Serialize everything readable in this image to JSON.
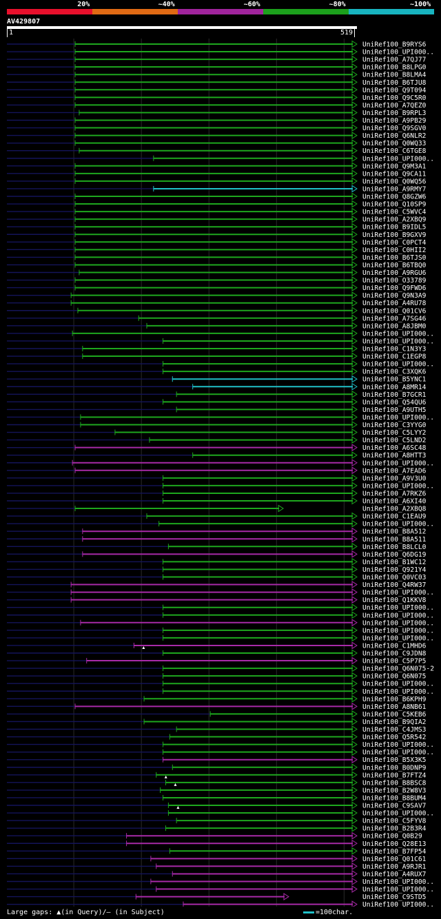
{
  "query": {
    "id": "AV429807",
    "start": "1",
    "end": "519",
    "length": 519
  },
  "legend": {
    "items": [
      {
        "label": "20%",
        "color": "#e8102c"
      },
      {
        "label": "~40%",
        "color": "#e06a14"
      },
      {
        "label": "~60%",
        "color": "#a0249c"
      },
      {
        "label": "~80%",
        "color": "#1ca01c"
      },
      {
        "label": "~100%",
        "color": "#18b4c0"
      }
    ]
  },
  "footer": {
    "gaps_text": "Large gaps: ▲(in Query)/– (in Subject)",
    "scale_text": "=100char."
  },
  "chart_data": {
    "type": "alignment",
    "title": "AV429807",
    "x_range": [
      1,
      519
    ],
    "gridlines": [
      100,
      200,
      300,
      400,
      500
    ],
    "hits": [
      {
        "label": "UniRef100_B9RYS6",
        "start": 102,
        "end": 519,
        "color": "green",
        "arrow": true
      },
      {
        "label": "UniRef100_UPI000..",
        "start": 102,
        "end": 519,
        "color": "green",
        "arrow": true
      },
      {
        "label": "UniRef100_A7QJ77",
        "start": 102,
        "end": 519,
        "color": "green",
        "arrow": true
      },
      {
        "label": "UniRef100_B8LPG0",
        "start": 102,
        "end": 519,
        "color": "green",
        "arrow": true
      },
      {
        "label": "UniRef100_B8LMA4",
        "start": 102,
        "end": 519,
        "color": "green",
        "arrow": true
      },
      {
        "label": "UniRef100_B6TJU8",
        "start": 102,
        "end": 519,
        "color": "green",
        "arrow": true
      },
      {
        "label": "UniRef100_Q9T094",
        "start": 102,
        "end": 519,
        "color": "green",
        "arrow": true
      },
      {
        "label": "UniRef100_Q9C5R0",
        "start": 102,
        "end": 519,
        "color": "green",
        "arrow": true
      },
      {
        "label": "UniRef100_A7QEZ0",
        "start": 102,
        "end": 519,
        "color": "green",
        "arrow": true
      },
      {
        "label": "UniRef100_B9RPL3",
        "start": 108,
        "end": 519,
        "color": "green",
        "arrow": true
      },
      {
        "label": "UniRef100_A9PB29",
        "start": 102,
        "end": 519,
        "color": "green",
        "arrow": true
      },
      {
        "label": "UniRef100_Q9SGV0",
        "start": 102,
        "end": 519,
        "color": "green",
        "arrow": true
      },
      {
        "label": "UniRef100_Q6NLR2",
        "start": 102,
        "end": 519,
        "color": "green",
        "arrow": true
      },
      {
        "label": "UniRef100_Q0WQ33",
        "start": 102,
        "end": 519,
        "color": "green",
        "arrow": true
      },
      {
        "label": "UniRef100_C6TGE8",
        "start": 108,
        "end": 519,
        "color": "green",
        "arrow": true
      },
      {
        "label": "UniRef100_UPI000..",
        "start": 218,
        "end": 519,
        "color": "green",
        "arrow": true
      },
      {
        "label": "UniRef100_Q9M3A1",
        "start": 102,
        "end": 519,
        "color": "green",
        "arrow": true
      },
      {
        "label": "UniRef100_Q9CA11",
        "start": 102,
        "end": 519,
        "color": "green",
        "arrow": true
      },
      {
        "label": "UniRef100_Q0WQ56",
        "start": 102,
        "end": 519,
        "color": "green",
        "arrow": true
      },
      {
        "label": "UniRef100_A9RMY7",
        "start": 218,
        "end": 519,
        "color": "cyan",
        "arrow": true
      },
      {
        "label": "UniRef100_Q8GZW6",
        "start": 102,
        "end": 519,
        "color": "green",
        "arrow": true
      },
      {
        "label": "UniRef100_Q10SP9",
        "start": 102,
        "end": 519,
        "color": "green",
        "arrow": true
      },
      {
        "label": "UniRef100_C5WVC4",
        "start": 102,
        "end": 519,
        "color": "green",
        "arrow": true
      },
      {
        "label": "UniRef100_A2XBQ9",
        "start": 102,
        "end": 519,
        "color": "green",
        "arrow": true
      },
      {
        "label": "UniRef100_B9IDL5",
        "start": 102,
        "end": 519,
        "color": "green",
        "arrow": true
      },
      {
        "label": "UniRef100_B9GXV9",
        "start": 102,
        "end": 519,
        "color": "green",
        "arrow": true
      },
      {
        "label": "UniRef100_C0PCT4",
        "start": 102,
        "end": 519,
        "color": "green",
        "arrow": true
      },
      {
        "label": "UniRef100_C0HII2",
        "start": 102,
        "end": 519,
        "color": "green",
        "arrow": true
      },
      {
        "label": "UniRef100_B6TJS0",
        "start": 102,
        "end": 519,
        "color": "green",
        "arrow": true
      },
      {
        "label": "UniRef100_B6TBQ0",
        "start": 102,
        "end": 519,
        "color": "green",
        "arrow": true
      },
      {
        "label": "UniRef100_A9RGU6",
        "start": 108,
        "end": 519,
        "color": "green",
        "arrow": true
      },
      {
        "label": "UniRef100_O33789",
        "start": 102,
        "end": 519,
        "color": "green",
        "arrow": true
      },
      {
        "label": "UniRef100_Q9FWD6",
        "start": 102,
        "end": 519,
        "color": "green",
        "arrow": true
      },
      {
        "label": "UniRef100_Q9N3A9",
        "start": 96,
        "end": 519,
        "color": "green",
        "arrow": true
      },
      {
        "label": "UniRef100_A4RU78",
        "start": 96,
        "end": 519,
        "color": "green",
        "arrow": true
      },
      {
        "label": "UniRef100_Q01CV6",
        "start": 106,
        "end": 519,
        "color": "green",
        "arrow": true
      },
      {
        "label": "UniRef100_A7SG46",
        "start": 196,
        "end": 519,
        "color": "green",
        "arrow": true
      },
      {
        "label": "UniRef100_A8JBM0",
        "start": 208,
        "end": 519,
        "color": "green",
        "arrow": true
      },
      {
        "label": "UniRef100_UPI000..",
        "start": 98,
        "end": 519,
        "color": "green",
        "arrow": true
      },
      {
        "label": "UniRef100_UPI000..",
        "start": 232,
        "end": 519,
        "color": "green",
        "arrow": true
      },
      {
        "label": "UniRef100_C1N3Y3",
        "start": 113,
        "end": 519,
        "color": "green",
        "arrow": true
      },
      {
        "label": "UniRef100_C1EGP8",
        "start": 113,
        "end": 519,
        "color": "green",
        "arrow": true
      },
      {
        "label": "UniRef100_UPI000..",
        "start": 232,
        "end": 519,
        "color": "green",
        "arrow": true
      },
      {
        "label": "UniRef100_C3XQK6",
        "start": 232,
        "end": 519,
        "color": "green",
        "arrow": true
      },
      {
        "label": "UniRef100_B5YNC1",
        "start": 246,
        "end": 519,
        "color": "cyan",
        "arrow": true
      },
      {
        "label": "UniRef100_A8MR14",
        "start": 276,
        "end": 519,
        "color": "cyan",
        "arrow": true
      },
      {
        "label": "UniRef100_B7GCR1",
        "start": 252,
        "end": 519,
        "color": "green",
        "arrow": true
      },
      {
        "label": "UniRef100_Q54QU6",
        "start": 232,
        "end": 519,
        "color": "green",
        "arrow": true
      },
      {
        "label": "UniRef100_A9UTH5",
        "start": 252,
        "end": 519,
        "color": "green",
        "arrow": true
      },
      {
        "label": "UniRef100_UPI000..",
        "start": 110,
        "end": 519,
        "color": "green",
        "arrow": true
      },
      {
        "label": "UniRef100_C3YYG0",
        "start": 110,
        "end": 519,
        "color": "green",
        "arrow": true
      },
      {
        "label": "UniRef100_C5LYY2",
        "start": 161,
        "end": 519,
        "color": "green",
        "arrow": true
      },
      {
        "label": "UniRef100_C5LND2",
        "start": 212,
        "end": 519,
        "color": "green",
        "arrow": true
      },
      {
        "label": "UniRef100_A6SC48",
        "start": 102,
        "end": 519,
        "color": "magenta",
        "arrow": true
      },
      {
        "label": "UniRef100_A8HTT3",
        "start": 276,
        "end": 519,
        "color": "green",
        "arrow": true
      },
      {
        "label": "UniRef100_UPI000..",
        "start": 98,
        "end": 519,
        "color": "magenta",
        "arrow": true
      },
      {
        "label": "UniRef100_A7EAD6",
        "start": 102,
        "end": 519,
        "color": "magenta",
        "arrow": true
      },
      {
        "label": "UniRef100_A9V3U0",
        "start": 232,
        "end": 519,
        "color": "green",
        "arrow": true
      },
      {
        "label": "UniRef100_UPI000..",
        "start": 232,
        "end": 519,
        "color": "green",
        "arrow": true
      },
      {
        "label": "UniRef100_A7RKZ6",
        "start": 232,
        "end": 519,
        "color": "green",
        "arrow": true
      },
      {
        "label": "UniRef100_A6XI40",
        "start": 232,
        "end": 519,
        "color": "green",
        "arrow": true
      },
      {
        "label": "UniRef100_A2XBQ8",
        "start": 102,
        "end": 410,
        "color": "green",
        "arrow": true
      },
      {
        "label": "UniRef100_C1EAU9",
        "start": 208,
        "end": 519,
        "color": "green",
        "arrow": true
      },
      {
        "label": "UniRef100_UPI000..",
        "start": 226,
        "end": 519,
        "color": "green",
        "arrow": true
      },
      {
        "label": "UniRef100_B8A512",
        "start": 113,
        "end": 519,
        "color": "magenta",
        "arrow": true
      },
      {
        "label": "UniRef100_B8A511",
        "start": 113,
        "end": 519,
        "color": "magenta",
        "arrow": true
      },
      {
        "label": "UniRef100_B8LCL0",
        "start": 240,
        "end": 519,
        "color": "green",
        "arrow": true
      },
      {
        "label": "UniRef100_Q6DG19",
        "start": 113,
        "end": 519,
        "color": "magenta",
        "arrow": true
      },
      {
        "label": "UniRef100_B1WC12",
        "start": 232,
        "end": 519,
        "color": "green",
        "arrow": true
      },
      {
        "label": "UniRef100_Q921Y4",
        "start": 232,
        "end": 519,
        "color": "green",
        "arrow": true
      },
      {
        "label": "UniRef100_Q0VC03",
        "start": 232,
        "end": 519,
        "color": "green",
        "arrow": true
      },
      {
        "label": "UniRef100_Q4RW37",
        "start": 96,
        "end": 519,
        "color": "magenta",
        "arrow": true
      },
      {
        "label": "UniRef100_UPI000..",
        "start": 96,
        "end": 519,
        "color": "magenta",
        "arrow": true
      },
      {
        "label": "UniRef100_Q1KKV8",
        "start": 96,
        "end": 519,
        "color": "magenta",
        "arrow": true
      },
      {
        "label": "UniRef100_UPI000..",
        "start": 232,
        "end": 519,
        "color": "green",
        "arrow": true
      },
      {
        "label": "UniRef100_UPI000..",
        "start": 232,
        "end": 519,
        "color": "green",
        "arrow": true
      },
      {
        "label": "UniRef100_UPI000..",
        "start": 110,
        "end": 519,
        "color": "magenta",
        "arrow": true
      },
      {
        "label": "UniRef100_UPI000..",
        "start": 232,
        "end": 519,
        "color": "green",
        "arrow": true
      },
      {
        "label": "UniRef100_UPI000..",
        "start": 232,
        "end": 519,
        "color": "green",
        "arrow": true
      },
      {
        "label": "UniRef100_C1MHD6",
        "start": 189,
        "end": 519,
        "color": "magenta",
        "arrow": true,
        "gap_mark": true
      },
      {
        "label": "UniRef100_C9JDN8",
        "start": 232,
        "end": 519,
        "color": "green",
        "arrow": true
      },
      {
        "label": "UniRef100_C5P7P5",
        "start": 119,
        "end": 519,
        "color": "magenta",
        "arrow": true
      },
      {
        "label": "UniRef100_Q6N075-2",
        "start": 232,
        "end": 519,
        "color": "green",
        "arrow": true
      },
      {
        "label": "UniRef100_Q6N075",
        "start": 232,
        "end": 519,
        "color": "green",
        "arrow": true
      },
      {
        "label": "UniRef100_UPI000..",
        "start": 232,
        "end": 519,
        "color": "green",
        "arrow": true
      },
      {
        "label": "UniRef100_UPI000..",
        "start": 232,
        "end": 519,
        "color": "green",
        "arrow": true
      },
      {
        "label": "UniRef100_B6KPH9",
        "start": 204,
        "end": 519,
        "color": "green",
        "arrow": true
      },
      {
        "label": "UniRef100_A8NB61",
        "start": 102,
        "end": 519,
        "color": "magenta",
        "arrow": true
      },
      {
        "label": "UniRef100_C5KEB6",
        "start": 302,
        "end": 519,
        "color": "green",
        "arrow": true
      },
      {
        "label": "UniRef100_B9QIA2",
        "start": 204,
        "end": 519,
        "color": "green",
        "arrow": true
      },
      {
        "label": "UniRef100_C4JMS3",
        "start": 252,
        "end": 519,
        "color": "green",
        "arrow": true
      },
      {
        "label": "UniRef100_Q5R542",
        "start": 242,
        "end": 519,
        "color": "green",
        "arrow": true
      },
      {
        "label": "UniRef100_UPI000..",
        "start": 232,
        "end": 519,
        "color": "green",
        "arrow": true
      },
      {
        "label": "UniRef100_UPI000..",
        "start": 232,
        "end": 519,
        "color": "green",
        "arrow": true
      },
      {
        "label": "UniRef100_B5X3K5",
        "start": 232,
        "end": 519,
        "color": "magenta",
        "arrow": true
      },
      {
        "label": "UniRef100_B0DNP9",
        "start": 246,
        "end": 519,
        "color": "green",
        "arrow": true
      },
      {
        "label": "UniRef100_B7FTZ4",
        "start": 222,
        "end": 519,
        "color": "green",
        "arrow": true,
        "gap_mark": true
      },
      {
        "label": "UniRef100_B8BSC8",
        "start": 236,
        "end": 519,
        "color": "green",
        "arrow": true,
        "gap_mark": true
      },
      {
        "label": "UniRef100_B2W8V3",
        "start": 228,
        "end": 519,
        "color": "green",
        "arrow": true
      },
      {
        "label": "UniRef100_B8BUM4",
        "start": 232,
        "end": 519,
        "color": "green",
        "arrow": true
      },
      {
        "label": "UniRef100_C9SAV7",
        "start": 240,
        "end": 519,
        "color": "green",
        "arrow": true,
        "gap_mark": true
      },
      {
        "label": "UniRef100_UPI000..",
        "start": 240,
        "end": 519,
        "color": "green",
        "arrow": true
      },
      {
        "label": "UniRef100_C5FYV8",
        "start": 252,
        "end": 519,
        "color": "green",
        "arrow": true
      },
      {
        "label": "UniRef100_B2B3R4",
        "start": 236,
        "end": 519,
        "color": "green",
        "arrow": true
      },
      {
        "label": "UniRef100_Q0B29",
        "start": 178,
        "end": 519,
        "color": "magenta",
        "arrow": true
      },
      {
        "label": "UniRef100_Q28E13",
        "start": 178,
        "end": 519,
        "color": "magenta",
        "arrow": true
      },
      {
        "label": "UniRef100_B7FP54",
        "start": 242,
        "end": 519,
        "color": "green",
        "arrow": true
      },
      {
        "label": "UniRef100_Q01C61",
        "start": 214,
        "end": 519,
        "color": "magenta",
        "arrow": true
      },
      {
        "label": "UniRef100_A9RJR1",
        "start": 222,
        "end": 519,
        "color": "magenta",
        "arrow": true
      },
      {
        "label": "UniRef100_A4RUX7",
        "start": 246,
        "end": 519,
        "color": "magenta",
        "arrow": true
      },
      {
        "label": "UniRef100_UPI000..",
        "start": 214,
        "end": 519,
        "color": "magenta",
        "arrow": true
      },
      {
        "label": "UniRef100_UPI000..",
        "start": 222,
        "end": 519,
        "color": "magenta",
        "arrow": true
      },
      {
        "label": "UniRef100_C9STD5",
        "start": 192,
        "end": 418,
        "color": "magenta",
        "arrow": true
      },
      {
        "label": "UniRef100_UPI000..",
        "start": 262,
        "end": 519,
        "color": "magenta",
        "arrow": true
      }
    ]
  }
}
